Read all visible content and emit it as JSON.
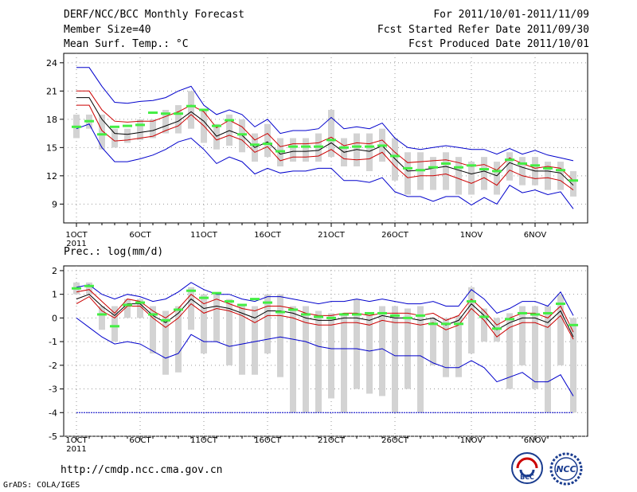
{
  "header": {
    "title": "DERF/NCC/BCC Monthly Forecast",
    "member_size": "Member Size=40",
    "variable1": "Mean Surf. Temp.: °C",
    "period": "For 2011/10/01-2011/11/09",
    "started": "Fcst Started Refer Date 2011/09/30",
    "produced": "Fcst Produced Date 2011/10/01"
  },
  "footer": {
    "url": "http://cmdp.ncc.cma.gov.cn",
    "credit": "GrADS: COLA/IGES",
    "logo1_text": "BCC",
    "logo2_text": "NCC"
  },
  "colors": {
    "max_line": "#0000cc",
    "min_line": "#0000cc",
    "pct_lines": "#cc0000",
    "mean_line": "#000000",
    "box": "#d3d3d3",
    "obs_marker": "#44ee44",
    "grid": "#999999"
  },
  "chart_data": [
    {
      "type": "line",
      "title": "Mean Surf. Temp.: °C",
      "x_tick_labels": [
        "1OCT",
        "6OCT",
        "11OCT",
        "16OCT",
        "21OCT",
        "26OCT",
        "1NOV",
        "6NOV"
      ],
      "x_tick_days": [
        1,
        6,
        11,
        16,
        21,
        26,
        32,
        37
      ],
      "year_label": "2011",
      "y_ticks": [
        9,
        12,
        15,
        18,
        21,
        24
      ],
      "ylim": [
        7,
        25
      ],
      "days": [
        1,
        2,
        3,
        4,
        5,
        6,
        7,
        8,
        9,
        10,
        11,
        12,
        13,
        14,
        15,
        16,
        17,
        18,
        19,
        20,
        21,
        22,
        23,
        24,
        25,
        26,
        27,
        28,
        29,
        30,
        31,
        32,
        33,
        34,
        35,
        36,
        37,
        38,
        39,
        40
      ],
      "series": [
        {
          "name": "max",
          "values": [
            23.5,
            23.5,
            21.5,
            19.8,
            19.7,
            19.9,
            20.0,
            20.3,
            21.0,
            21.5,
            19.5,
            18.5,
            19.0,
            18.5,
            17.2,
            18.0,
            16.5,
            16.8,
            16.8,
            17.0,
            18.2,
            17.0,
            17.2,
            17.0,
            17.6,
            16.0,
            15.0,
            14.8,
            15.0,
            15.2,
            15.0,
            14.8,
            14.8,
            14.3,
            14.9,
            14.3,
            14.7,
            14.2,
            13.9,
            13.6
          ]
        },
        {
          "name": "p90",
          "values": [
            21.0,
            21.0,
            19.0,
            17.8,
            17.7,
            17.8,
            17.8,
            18.3,
            18.8,
            19.5,
            18.8,
            17.1,
            17.9,
            17.2,
            15.8,
            16.5,
            15.1,
            15.4,
            15.4,
            15.5,
            16.1,
            15.2,
            15.5,
            15.4,
            15.8,
            14.5,
            13.4,
            13.5,
            13.6,
            13.7,
            13.4,
            13.0,
            13.2,
            12.6,
            13.9,
            13.3,
            12.8,
            13.0,
            12.8,
            11.5
          ]
        },
        {
          "name": "mean",
          "values": [
            20.3,
            20.3,
            18.0,
            16.5,
            16.4,
            16.6,
            16.8,
            17.3,
            17.8,
            18.8,
            17.8,
            16.2,
            16.8,
            16.3,
            15.0,
            15.6,
            14.3,
            14.6,
            14.6,
            14.7,
            15.5,
            14.5,
            14.8,
            14.6,
            15.2,
            13.8,
            12.5,
            12.6,
            12.8,
            13.0,
            12.6,
            12.2,
            12.5,
            12.0,
            13.4,
            12.9,
            12.5,
            12.5,
            12.3,
            11.0
          ]
        },
        {
          "name": "p10",
          "values": [
            19.5,
            19.5,
            16.8,
            15.7,
            15.8,
            16.0,
            16.2,
            16.8,
            17.3,
            18.5,
            17.3,
            15.8,
            16.3,
            15.8,
            14.5,
            15.1,
            13.6,
            14.0,
            14.0,
            14.1,
            14.8,
            13.8,
            13.7,
            13.8,
            14.5,
            13.0,
            11.8,
            12.0,
            12.0,
            12.2,
            11.7,
            11.2,
            11.8,
            11.0,
            12.6,
            12.0,
            11.7,
            11.8,
            11.5,
            10.5
          ]
        },
        {
          "name": "min",
          "values": [
            17.0,
            17.5,
            15.0,
            13.5,
            13.5,
            13.8,
            14.2,
            14.8,
            15.6,
            16.0,
            14.8,
            13.3,
            14.0,
            13.5,
            12.2,
            12.8,
            12.3,
            12.5,
            12.5,
            12.8,
            12.8,
            11.5,
            11.5,
            11.3,
            11.8,
            10.3,
            9.8,
            9.8,
            9.3,
            9.8,
            9.8,
            8.9,
            9.7,
            9.0,
            11.0,
            10.2,
            10.5,
            10.0,
            10.3,
            8.5
          ]
        }
      ],
      "box_low": [
        16.0,
        17.0,
        14.8,
        15.0,
        15.5,
        15.8,
        16.0,
        16.5,
        16.5,
        17.0,
        15.5,
        14.8,
        15.2,
        14.5,
        13.5,
        14.0,
        13.0,
        13.5,
        13.5,
        13.5,
        14.0,
        13.0,
        13.0,
        12.5,
        13.5,
        11.5,
        10.0,
        10.5,
        10.5,
        10.5,
        10.0,
        10.0,
        10.5,
        10.0,
        11.5,
        11.0,
        11.0,
        10.5,
        10.5,
        9.8
      ],
      "box_high": [
        18.5,
        18.5,
        18.5,
        17.0,
        17.0,
        18.0,
        18.0,
        19.0,
        19.5,
        21.0,
        19.0,
        17.5,
        18.5,
        18.0,
        16.5,
        17.5,
        16.0,
        16.0,
        16.0,
        16.5,
        19.0,
        16.0,
        16.5,
        16.5,
        17.0,
        16.0,
        14.5,
        14.5,
        14.0,
        14.5,
        14.0,
        13.5,
        14.0,
        13.5,
        14.5,
        14.0,
        14.0,
        13.5,
        13.5,
        12.5
      ],
      "observed": [
        17.2,
        17.8,
        16.4,
        17.2,
        17.3,
        17.4,
        18.7,
        18.6,
        18.6,
        19.4,
        19.0,
        17.3,
        17.9,
        16.4,
        15.3,
        15.4,
        14.6,
        15.1,
        15.1,
        15.1,
        15.8,
        15.0,
        15.1,
        15.1,
        15.2,
        14.1,
        12.8,
        12.6,
        12.9,
        13.3,
        12.9,
        13.1,
        12.7,
        12.5,
        13.7,
        13.3,
        13.1,
        12.8,
        12.6,
        11.5
      ]
    },
    {
      "type": "line",
      "title": "Prec.: log(mm/d)",
      "x_tick_labels": [
        "1OCT",
        "6OCT",
        "11OCT",
        "16OCT",
        "21OCT",
        "26OCT",
        "1NOV",
        "6NOV"
      ],
      "x_tick_days": [
        1,
        6,
        11,
        16,
        21,
        26,
        32,
        37
      ],
      "year_label": "2011",
      "y_ticks": [
        -5,
        -4,
        -3,
        -2,
        -1,
        0,
        1,
        2
      ],
      "ylim": [
        -5,
        2.2
      ],
      "days": [
        1,
        2,
        3,
        4,
        5,
        6,
        7,
        8,
        9,
        10,
        11,
        12,
        13,
        14,
        15,
        16,
        17,
        18,
        19,
        20,
        21,
        22,
        23,
        24,
        25,
        26,
        27,
        28,
        29,
        30,
        31,
        32,
        33,
        34,
        35,
        36,
        37,
        38,
        39,
        40
      ],
      "floor_value": -4,
      "series": [
        {
          "name": "max",
          "values": [
            1.3,
            1.4,
            1.0,
            0.8,
            1.0,
            0.9,
            0.7,
            0.8,
            1.1,
            1.5,
            1.2,
            1.0,
            1.0,
            0.8,
            0.7,
            0.9,
            0.9,
            0.8,
            0.7,
            0.6,
            0.7,
            0.7,
            0.8,
            0.7,
            0.8,
            0.7,
            0.6,
            0.6,
            0.7,
            0.5,
            0.5,
            1.2,
            0.8,
            0.2,
            0.4,
            0.7,
            0.7,
            0.5,
            1.1,
            0.1
          ]
        },
        {
          "name": "p90",
          "values": [
            1.1,
            1.2,
            0.7,
            0.2,
            0.8,
            0.7,
            0.3,
            0.0,
            0.4,
            1.0,
            0.6,
            0.8,
            0.6,
            0.4,
            0.3,
            0.5,
            0.5,
            0.4,
            0.2,
            0.1,
            0.1,
            0.2,
            0.2,
            0.1,
            0.2,
            0.2,
            0.2,
            0.1,
            0.2,
            -0.1,
            0.1,
            0.8,
            0.3,
            -0.3,
            0.0,
            0.2,
            0.2,
            0.0,
            0.5,
            -0.6
          ]
        },
        {
          "name": "mean",
          "values": [
            0.8,
            1.0,
            0.5,
            0.1,
            0.6,
            0.6,
            0.1,
            -0.2,
            0.2,
            0.8,
            0.4,
            0.5,
            0.4,
            0.2,
            0.0,
            0.3,
            0.3,
            0.2,
            0.0,
            -0.1,
            -0.1,
            0.0,
            0.0,
            -0.1,
            0.1,
            0.0,
            0.0,
            -0.1,
            0.0,
            -0.3,
            -0.1,
            0.6,
            0.1,
            -0.5,
            -0.2,
            0.0,
            0.0,
            -0.2,
            0.3,
            -0.8
          ]
        },
        {
          "name": "p10",
          "values": [
            0.6,
            0.9,
            0.3,
            0.0,
            0.5,
            0.5,
            0.0,
            -0.4,
            0.0,
            0.6,
            0.2,
            0.4,
            0.3,
            0.1,
            -0.2,
            0.1,
            0.1,
            0.0,
            -0.2,
            -0.3,
            -0.3,
            -0.2,
            -0.2,
            -0.3,
            -0.1,
            -0.2,
            -0.2,
            -0.3,
            -0.2,
            -0.5,
            -0.3,
            0.4,
            -0.1,
            -0.8,
            -0.4,
            -0.2,
            -0.2,
            -0.4,
            0.1,
            -0.9
          ]
        },
        {
          "name": "min",
          "values": [
            0.0,
            -0.4,
            -0.8,
            -1.1,
            -1.0,
            -1.1,
            -1.4,
            -1.7,
            -1.5,
            -0.7,
            -1.0,
            -1.0,
            -1.2,
            -1.1,
            -1.0,
            -0.9,
            -0.8,
            -0.9,
            -1.0,
            -1.2,
            -1.3,
            -1.3,
            -1.3,
            -1.4,
            -1.3,
            -1.6,
            -1.6,
            -1.6,
            -1.9,
            -2.1,
            -2.1,
            -1.8,
            -2.1,
            -2.7,
            -2.5,
            -2.3,
            -2.7,
            -2.7,
            -2.4,
            -3.3
          ]
        }
      ],
      "box_low": [
        1.0,
        1.0,
        -0.5,
        -1.0,
        0.0,
        0.0,
        -1.5,
        -2.4,
        -2.3,
        -0.5,
        -1.5,
        -1.0,
        -2.0,
        -2.4,
        -2.4,
        -1.5,
        -2.5,
        -4.0,
        -4.0,
        -4.0,
        -3.4,
        -4.0,
        -3.0,
        -3.2,
        -3.3,
        -4.0,
        -3.0,
        -4.0,
        -2.0,
        -2.5,
        -2.5,
        -1.5,
        -1.0,
        -1.0,
        -3.0,
        -2.0,
        -3.0,
        -4.0,
        -2.0,
        -4.0
      ],
      "box_high": [
        1.5,
        1.5,
        0.5,
        0.5,
        0.8,
        0.8,
        0.5,
        0.3,
        0.5,
        1.3,
        1.0,
        1.0,
        0.8,
        0.5,
        0.5,
        1.0,
        1.0,
        0.5,
        0.5,
        0.3,
        0.2,
        0.2,
        0.8,
        0.2,
        0.5,
        0.5,
        0.4,
        0.5,
        0.0,
        0.0,
        0.1,
        1.3,
        0.4,
        0.0,
        0.2,
        0.5,
        0.5,
        0.5,
        1.0,
        0.0
      ],
      "observed": [
        1.25,
        1.35,
        0.15,
        -0.35,
        0.55,
        0.65,
        0.15,
        -0.1,
        0.35,
        1.15,
        0.85,
        1.05,
        0.7,
        0.55,
        0.8,
        0.65,
        0.25,
        0.35,
        0.15,
        0.05,
        0.0,
        0.15,
        0.15,
        0.2,
        0.2,
        0.1,
        0.0,
        0.1,
        -0.25,
        -0.25,
        -0.25,
        0.7,
        0.05,
        -0.45,
        -0.05,
        0.2,
        0.15,
        0.2,
        0.6,
        -0.3
      ]
    }
  ]
}
